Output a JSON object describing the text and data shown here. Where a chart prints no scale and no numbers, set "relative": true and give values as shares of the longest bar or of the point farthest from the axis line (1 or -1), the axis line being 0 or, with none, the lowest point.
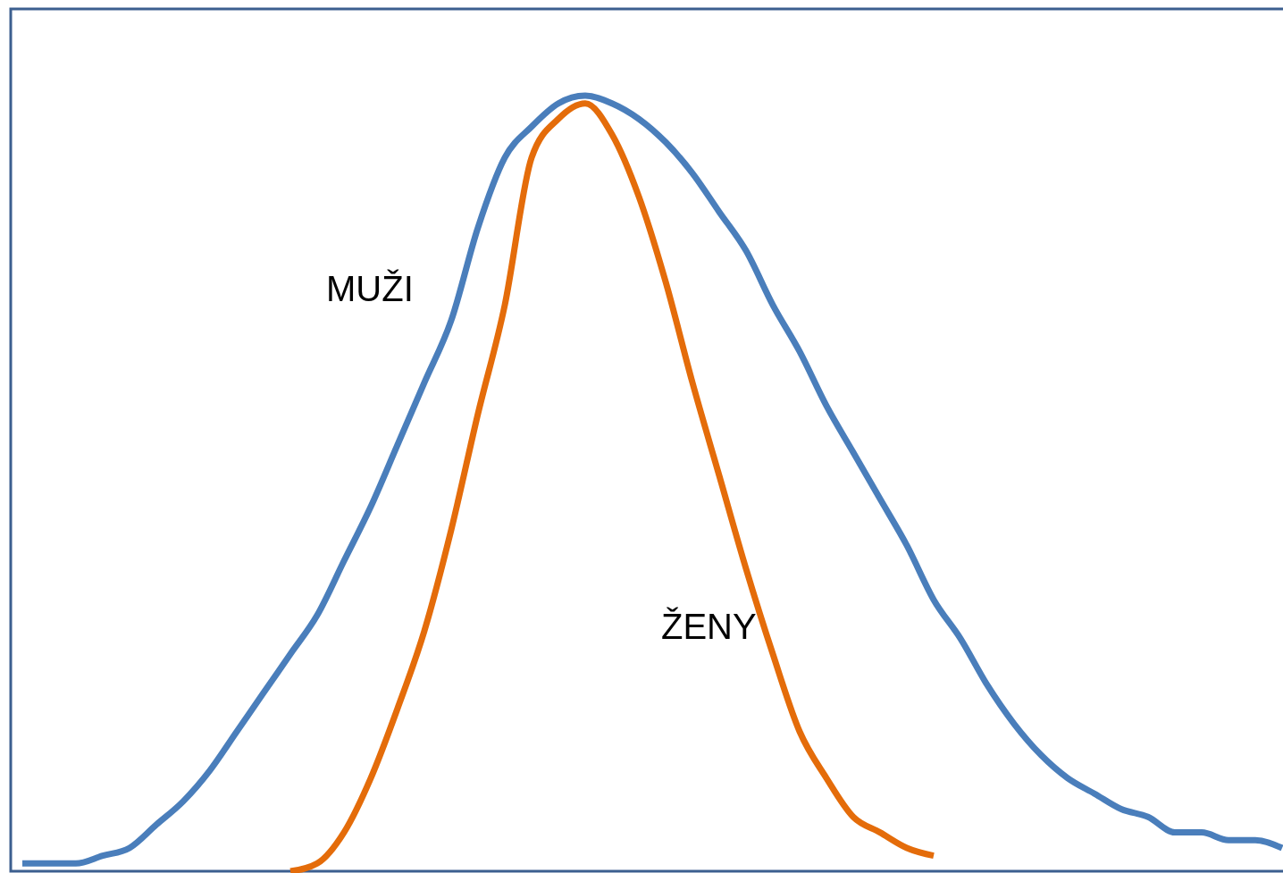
{
  "chart_data": {
    "type": "line",
    "relative": true,
    "legend": false,
    "marker": "none",
    "line_style": "solid",
    "categories": [
      null,
      null,
      null,
      null,
      null,
      null,
      null,
      null,
      null,
      null,
      null,
      null,
      null,
      null,
      null,
      null,
      null,
      null,
      null,
      null,
      null,
      null,
      null,
      null,
      null,
      null,
      null,
      null,
      null,
      null,
      null,
      null,
      null,
      null,
      null,
      null,
      null,
      null,
      null,
      null,
      null,
      null,
      null,
      null,
      null,
      null,
      null,
      null
    ],
    "series": [
      {
        "name": "MUŽI",
        "color": "#4a7ebb",
        "values": [
          0.01,
          0.01,
          0.01,
          0.02,
          0.03,
          0.06,
          0.09,
          0.13,
          0.18,
          0.23,
          0.28,
          0.33,
          0.4,
          0.47,
          0.55,
          0.63,
          0.71,
          0.83,
          0.92,
          0.96,
          0.99,
          1,
          0.99,
          0.97,
          0.94,
          0.9,
          0.85,
          0.8,
          0.73,
          0.67,
          0.6,
          0.54,
          0.48,
          0.42,
          0.35,
          0.3,
          0.24,
          0.19,
          0.15,
          0.12,
          0.1,
          0.08,
          0.07,
          0.05,
          0.05,
          0.04,
          0.04,
          0.03
        ]
      },
      {
        "name": "ŽENY",
        "color": "#e46c0a",
        "values": [
          null,
          null,
          null,
          null,
          null,
          null,
          null,
          null,
          null,
          null,
          0.0,
          0.01,
          0.05,
          0.12,
          0.21,
          0.31,
          0.44,
          0.59,
          0.73,
          0.92,
          0.97,
          0.99,
          0.95,
          0.87,
          0.76,
          0.63,
          0.51,
          0.39,
          0.28,
          0.18,
          0.12,
          0.07,
          0.05,
          0.03,
          0.02,
          null,
          null,
          null,
          null,
          null,
          null,
          null,
          null,
          null,
          null,
          null,
          null,
          null
        ]
      }
    ]
  }
}
